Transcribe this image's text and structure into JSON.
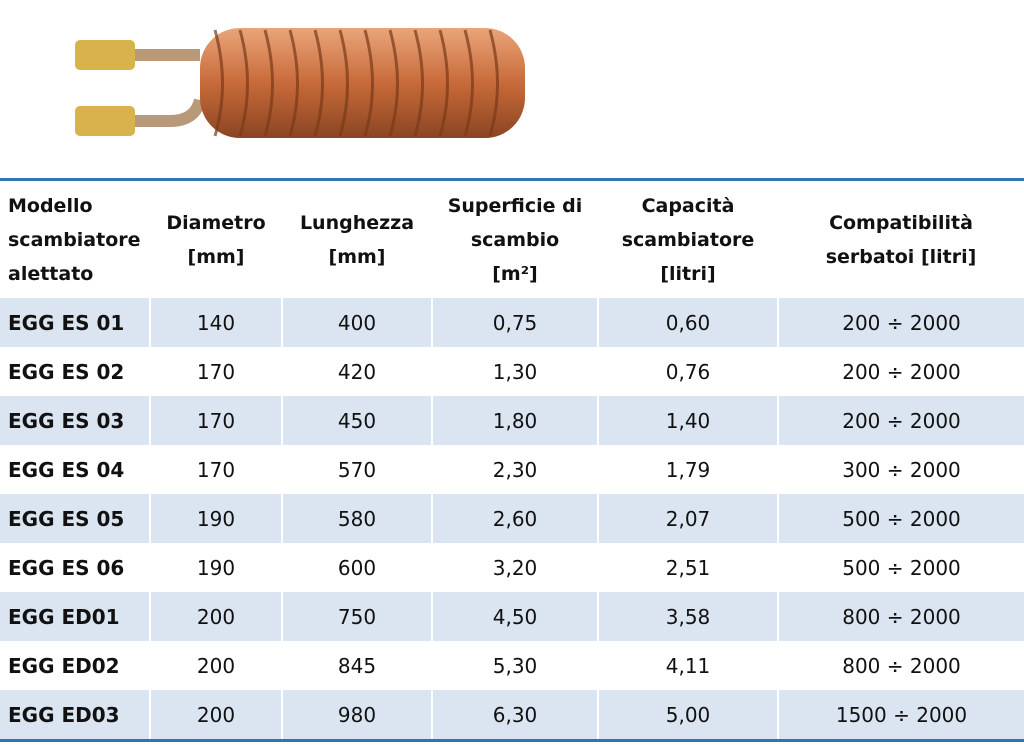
{
  "table": {
    "header": [
      [
        "Modello",
        "scambiatore",
        "alettato"
      ],
      [
        "Diametro",
        "[mm]"
      ],
      [
        "Lunghezza",
        "[mm]"
      ],
      [
        "Superficie di",
        "scambio",
        "[m²]"
      ],
      [
        "Capacità",
        "scambiatore",
        "[litri]"
      ],
      [
        "Compatibilità",
        "serbatoi [litri]"
      ]
    ],
    "rows": [
      [
        "EGG ES 01",
        "140",
        "400",
        "0,75",
        "0,60",
        "200 ÷ 2000"
      ],
      [
        "EGG ES 02",
        "170",
        "420",
        "1,30",
        "0,76",
        "200 ÷ 2000"
      ],
      [
        "EGG ES 03",
        "170",
        "450",
        "1,80",
        "1,40",
        "200 ÷ 2000"
      ],
      [
        "EGG ES 04",
        "170",
        "570",
        "2,30",
        "1,79",
        "300 ÷ 2000"
      ],
      [
        "EGG ES 05",
        "190",
        "580",
        "2,60",
        "2,07",
        "500 ÷ 2000"
      ],
      [
        "EGG ES 06",
        "190",
        "600",
        "3,20",
        "2,51",
        "500 ÷ 2000"
      ],
      [
        "EGG ED01",
        "200",
        "750",
        "4,50",
        "3,58",
        "800 ÷ 2000"
      ],
      [
        "EGG ED02",
        "200",
        "845",
        "5,30",
        "4,11",
        "800 ÷ 2000"
      ],
      [
        "EGG ED03",
        "200",
        "980",
        "6,30",
        "5,00",
        "1500 ÷ 2000"
      ]
    ]
  }
}
